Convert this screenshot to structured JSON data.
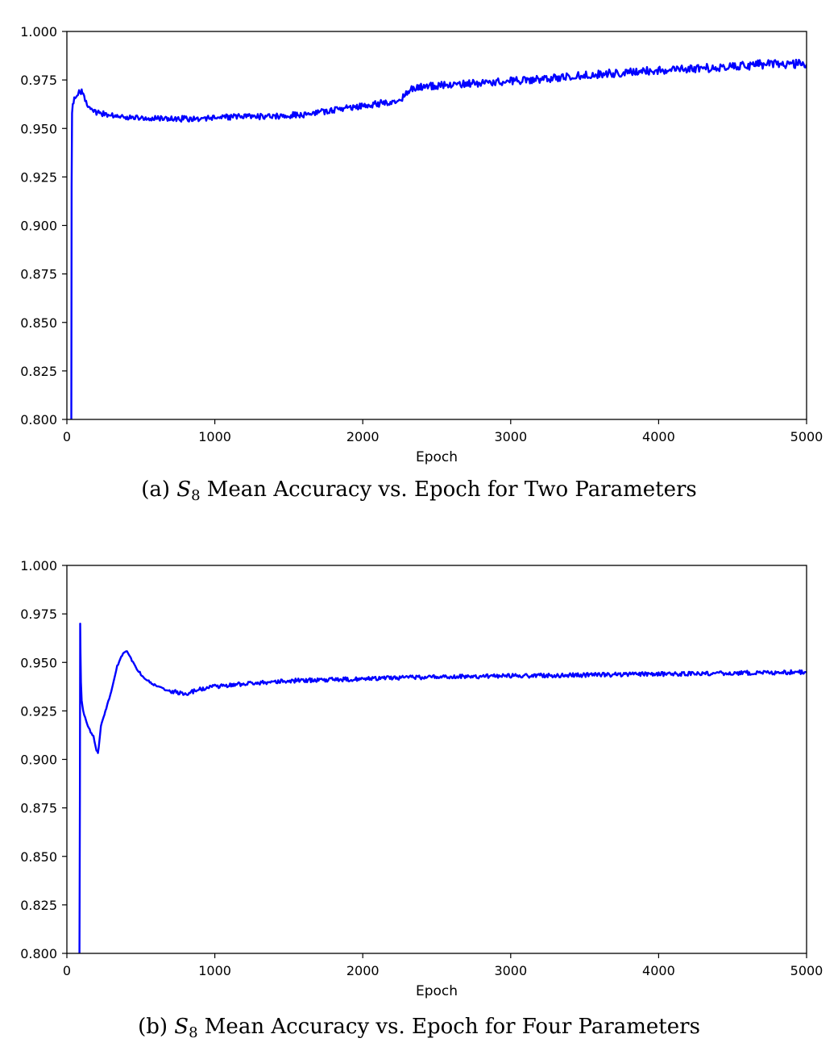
{
  "chart_data": [
    {
      "id": "a",
      "type": "line",
      "title": "",
      "caption_prefix": "(a) ",
      "caption_symbol": "S",
      "caption_subscript": "8",
      "caption_rest": " Mean Accuracy vs. Epoch for Two Parameters",
      "xlabel": "Epoch",
      "ylabel": "",
      "xlim": [
        0,
        5000
      ],
      "ylim": [
        0.8,
        1.0
      ],
      "xticks": [
        "0",
        "1000",
        "2000",
        "3000",
        "4000",
        "5000"
      ],
      "yticks": [
        "0.800",
        "0.825",
        "0.850",
        "0.875",
        "0.900",
        "0.925",
        "0.950",
        "0.975",
        "1.000"
      ],
      "grid": false,
      "color": "#0000ff",
      "series": [
        {
          "x": [
            30,
            32,
            35,
            40,
            50,
            60,
            75,
            90,
            100,
            110,
            130,
            160,
            200,
            300,
            400,
            500,
            700,
            800,
            1000,
            1200,
            1400,
            1600,
            1800,
            2000,
            2200,
            2260,
            2300,
            2330,
            2400,
            2500,
            2700,
            3000,
            3300,
            3600,
            4000,
            4300,
            4600,
            4800,
            5000
          ],
          "y": [
            0.8,
            0.92,
            0.958,
            0.963,
            0.965,
            0.966,
            0.968,
            0.969,
            0.969,
            0.968,
            0.964,
            0.96,
            0.958,
            0.957,
            0.9558,
            0.9555,
            0.955,
            0.955,
            0.9555,
            0.956,
            0.9565,
            0.957,
            0.9595,
            0.9615,
            0.964,
            0.965,
            0.968,
            0.97,
            0.9715,
            0.972,
            0.973,
            0.9745,
            0.976,
            0.978,
            0.98,
            0.981,
            0.9825,
            0.9835,
            0.983
          ]
        }
      ]
    },
    {
      "id": "b",
      "type": "line",
      "title": "",
      "caption_prefix": "(b) ",
      "caption_symbol": "S",
      "caption_subscript": "8",
      "caption_rest": " Mean Accuracy vs. Epoch for Four Parameters",
      "xlabel": "Epoch",
      "ylabel": "",
      "xlim": [
        0,
        5000
      ],
      "ylim": [
        0.8,
        1.0
      ],
      "xticks": [
        "0",
        "1000",
        "2000",
        "3000",
        "4000",
        "5000"
      ],
      "yticks": [
        "0.800",
        "0.825",
        "0.850",
        "0.875",
        "0.900",
        "0.925",
        "0.950",
        "0.975",
        "1.000"
      ],
      "grid": false,
      "color": "#0000ff",
      "series": [
        {
          "x": [
            85,
            88,
            90,
            92,
            95,
            100,
            110,
            130,
            160,
            180,
            200,
            210,
            215,
            230,
            260,
            300,
            340,
            380,
            400,
            420,
            460,
            520,
            600,
            700,
            800,
            900,
            1000,
            1200,
            1500,
            2000,
            2500,
            3000,
            3500,
            4000,
            4500,
            5000
          ],
          "y": [
            0.8,
            0.88,
            0.97,
            0.955,
            0.94,
            0.93,
            0.925,
            0.92,
            0.914,
            0.912,
            0.905,
            0.903,
            0.906,
            0.917,
            0.925,
            0.935,
            0.948,
            0.955,
            0.956,
            0.954,
            0.948,
            0.942,
            0.938,
            0.935,
            0.934,
            0.936,
            0.9375,
            0.939,
            0.9405,
            0.9415,
            0.9425,
            0.943,
            0.9435,
            0.944,
            0.9445,
            0.945
          ]
        }
      ]
    }
  ]
}
